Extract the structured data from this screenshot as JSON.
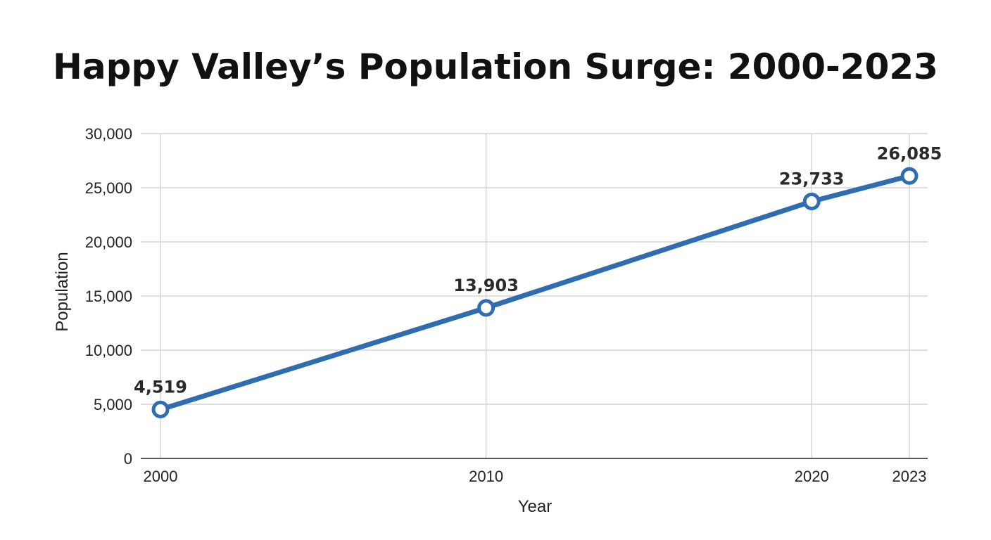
{
  "chart_data": {
    "type": "line",
    "title": "Happy Valley’s Population Surge: 2000-2023",
    "xlabel": "Year",
    "ylabel": "Population",
    "categories": [
      "2000",
      "2010",
      "2020",
      "2023"
    ],
    "x": [
      2000,
      2010,
      2020,
      2023
    ],
    "series": [
      {
        "values": [
          4519,
          13903,
          23733,
          26085
        ],
        "labels": [
          "4,519",
          "13,903",
          "23,733",
          "26,085"
        ],
        "color": "#2f6db0"
      }
    ],
    "ylim": [
      0,
      30000
    ],
    "yticks": [
      0,
      5000,
      10000,
      15000,
      20000,
      25000,
      30000
    ],
    "ytick_labels": [
      "0",
      "5,000",
      "10,000",
      "15,000",
      "20,000",
      "25,000",
      "30,000"
    ],
    "grid": true,
    "legend": "none",
    "marker": "hollow-circle"
  }
}
